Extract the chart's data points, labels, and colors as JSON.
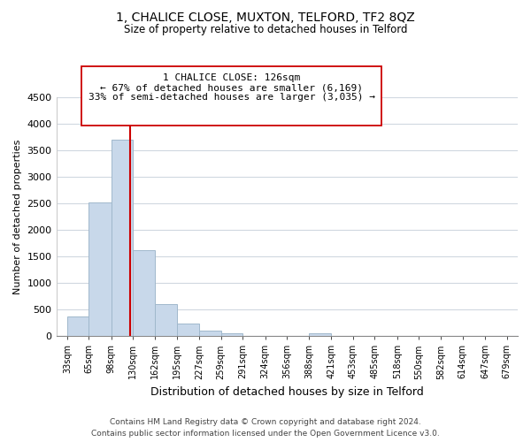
{
  "title": "1, CHALICE CLOSE, MUXTON, TELFORD, TF2 8QZ",
  "subtitle": "Size of property relative to detached houses in Telford",
  "xlabel": "Distribution of detached houses by size in Telford",
  "ylabel": "Number of detached properties",
  "footer_line1": "Contains HM Land Registry data © Crown copyright and database right 2024.",
  "footer_line2": "Contains public sector information licensed under the Open Government Licence v3.0.",
  "bar_edges": [
    33,
    65,
    98,
    130,
    162,
    195,
    227,
    259,
    291,
    324,
    356,
    388,
    421,
    453,
    485,
    518,
    550,
    582,
    614,
    647,
    679
  ],
  "bar_heights": [
    375,
    2525,
    3700,
    1625,
    600,
    240,
    100,
    55,
    0,
    0,
    0,
    55,
    0,
    0,
    0,
    0,
    0,
    0,
    0,
    0
  ],
  "bar_color": "#c8d8ea",
  "bar_edge_color": "#a0b8cc",
  "vertical_line_x": 126,
  "vertical_line_color": "#cc0000",
  "ylim": [
    0,
    4500
  ],
  "yticks": [
    0,
    500,
    1000,
    1500,
    2000,
    2500,
    3000,
    3500,
    4000,
    4500
  ],
  "annotation_text_line1": "1 CHALICE CLOSE: 126sqm",
  "annotation_text_line2": "← 67% of detached houses are smaller (6,169)",
  "annotation_text_line3": "33% of semi-detached houses are larger (3,035) →",
  "tick_labels": [
    "33sqm",
    "65sqm",
    "98sqm",
    "130sqm",
    "162sqm",
    "195sqm",
    "227sqm",
    "259sqm",
    "291sqm",
    "324sqm",
    "356sqm",
    "388sqm",
    "421sqm",
    "453sqm",
    "485sqm",
    "518sqm",
    "550sqm",
    "582sqm",
    "614sqm",
    "647sqm",
    "679sqm"
  ],
  "background_color": "#ffffff",
  "grid_color": "#d0d8e0"
}
